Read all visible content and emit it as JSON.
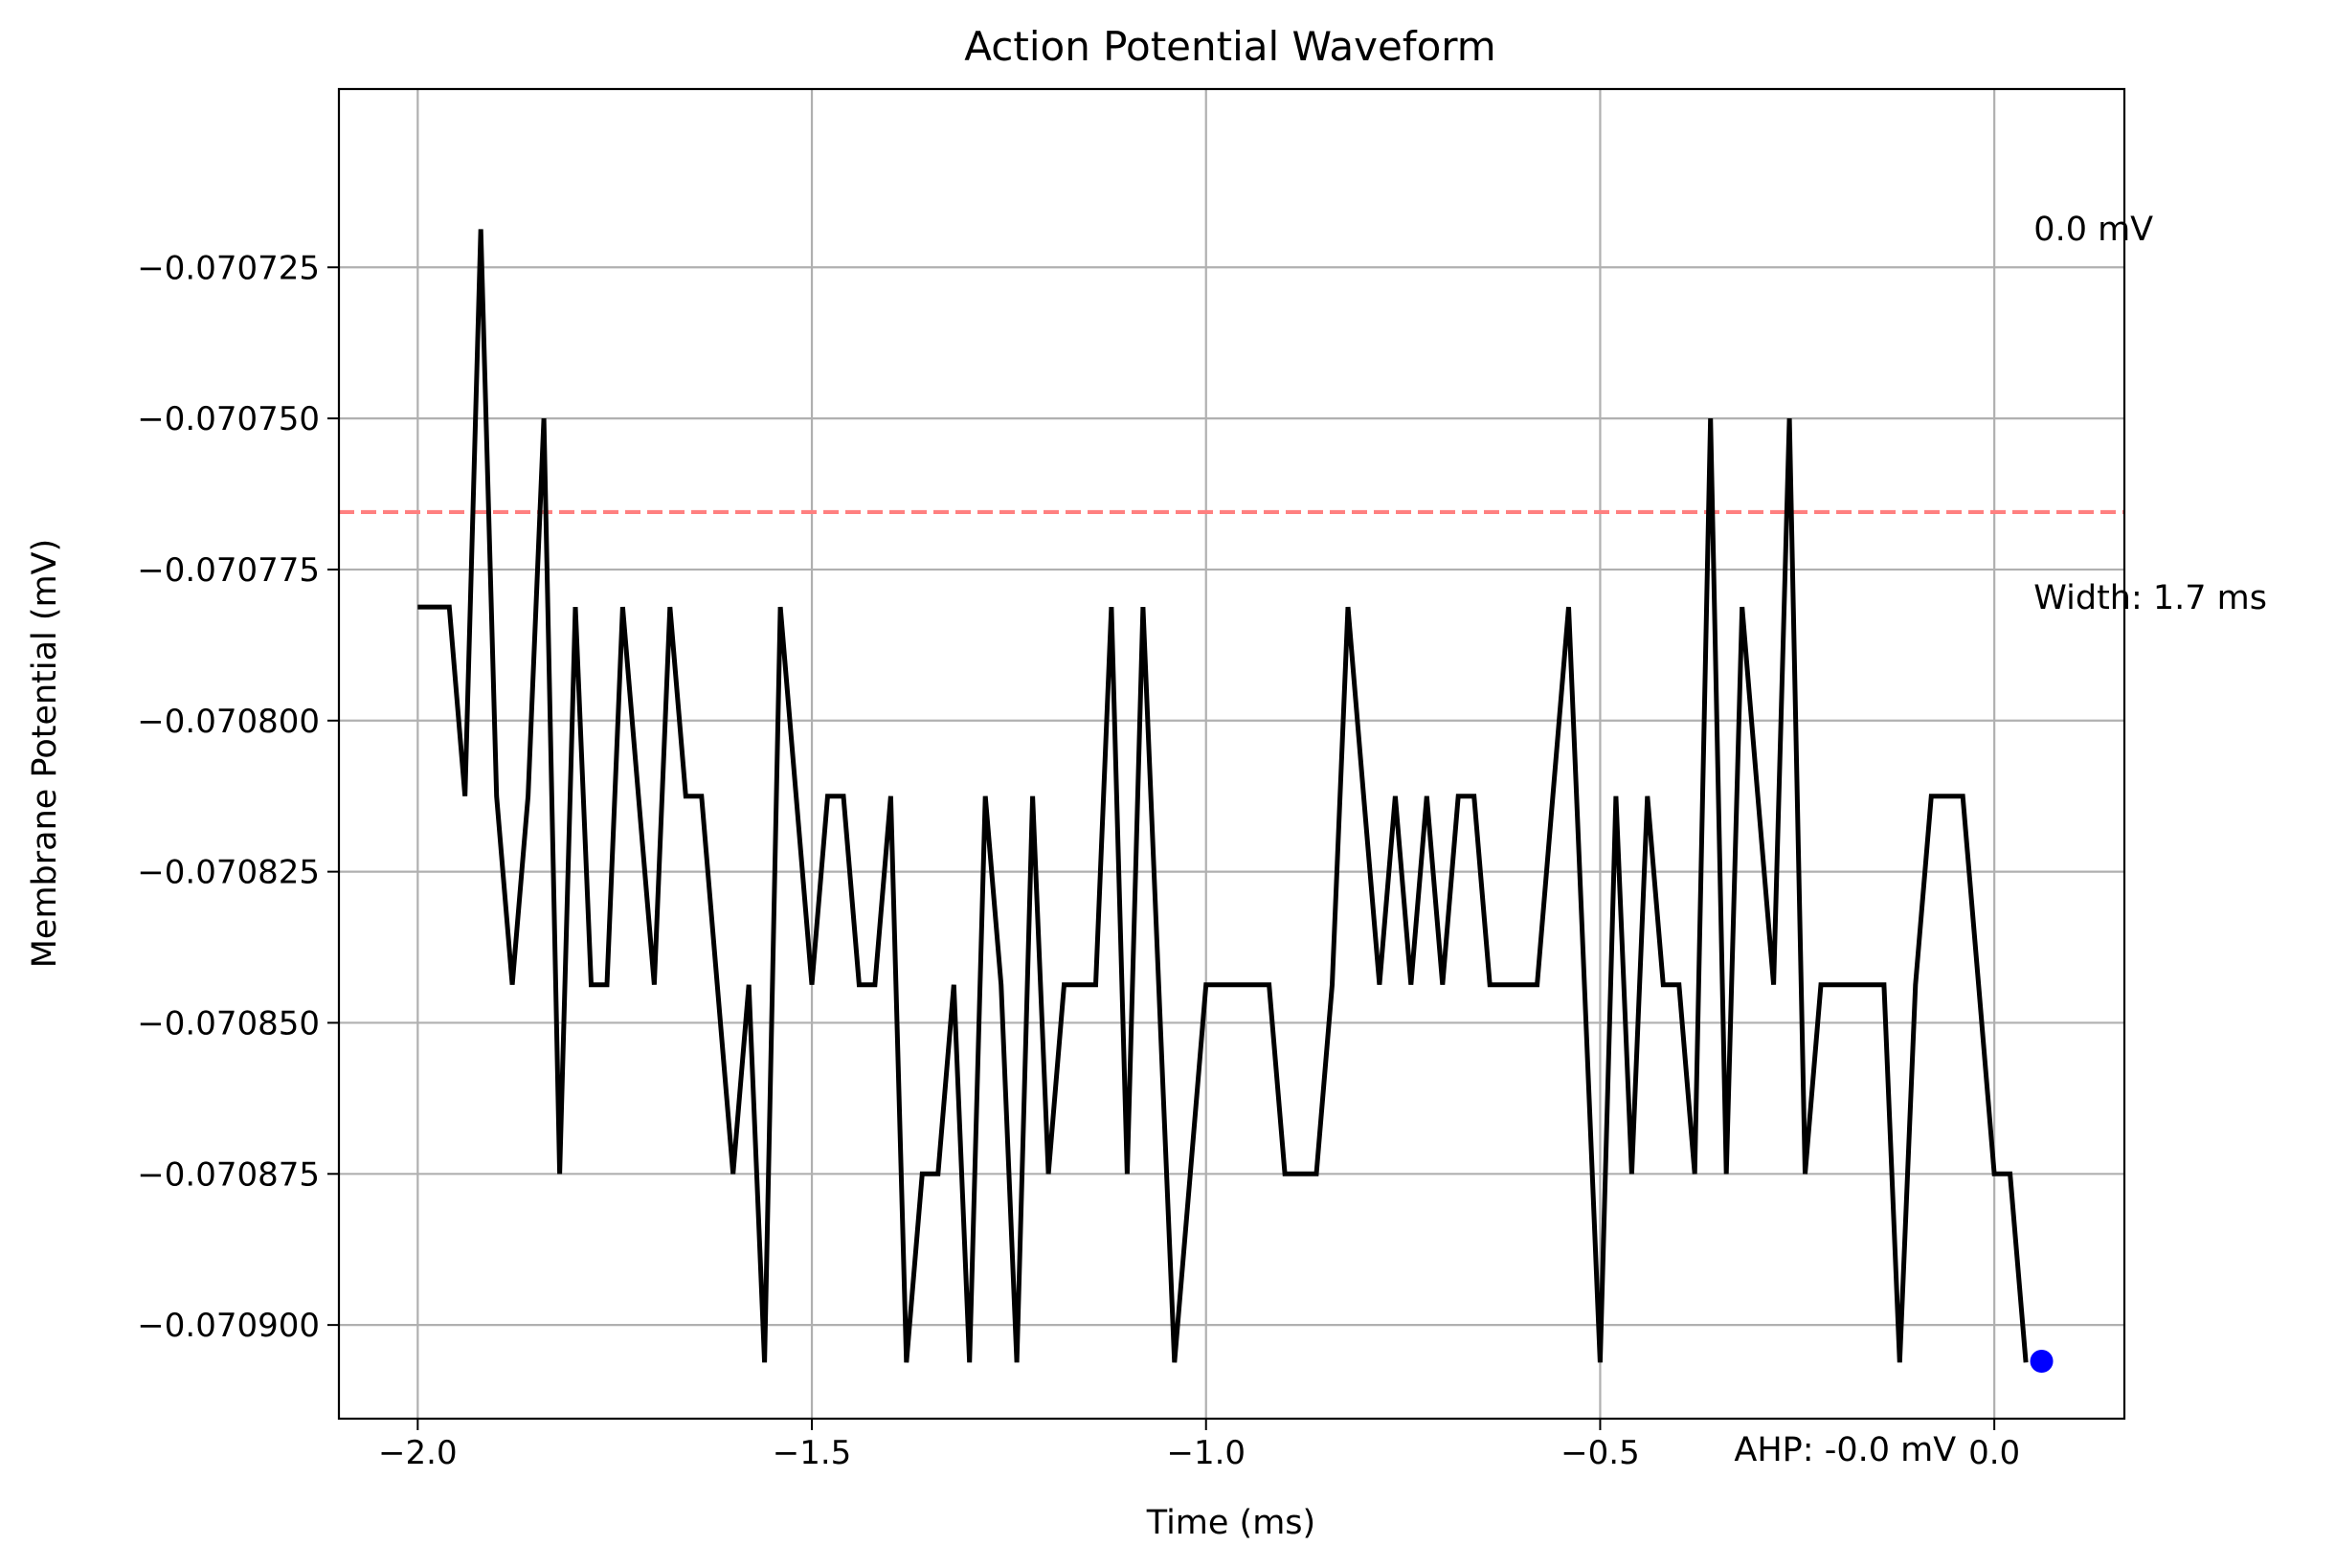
{
  "chart_data": {
    "type": "line",
    "title": "Action Potential Waveform",
    "xlabel": "Time (ms)",
    "ylabel": "Membrane Potential (mV)",
    "xlim": [
      -2.1,
      0.165
    ],
    "ylim": [
      -0.0709155,
      -0.0706955
    ],
    "xticks": [
      -2.0,
      -1.5,
      -1.0,
      -0.5,
      0.0
    ],
    "xtick_labels": [
      "−2.0",
      "−1.5",
      "−1.0",
      "−0.5",
      "0.0"
    ],
    "yticks": [
      -0.070725,
      -0.07075,
      -0.070775,
      -0.0708,
      -0.070825,
      -0.07085,
      -0.070875,
      -0.0709
    ],
    "ytick_labels": [
      "−0.070725",
      "−0.070750",
      "−0.070775",
      "−0.070800",
      "−0.070825",
      "−0.070850",
      "−0.070875",
      "−0.070900"
    ],
    "grid": true,
    "line_color": "#000000",
    "threshold": {
      "value": -0.0707655,
      "color": "#ff8080",
      "style": "dashed"
    },
    "marker": {
      "x": 0.06,
      "y": -0.070906,
      "color": "#0000ff"
    },
    "annotations": {
      "peak": {
        "text": "0.0 mV",
        "x": 0.05,
        "y": -0.0707205
      },
      "width": {
        "text": "Width: 1.7 ms",
        "x": 0.05,
        "y": -0.0707815
      },
      "ahp": {
        "text": "AHP: -0.0 mV",
        "x": -0.33,
        "y": -0.0709225
      }
    },
    "series": [
      {
        "x": [
          -2.0,
          -1.98,
          -1.96,
          -1.94,
          -1.92,
          -1.9,
          -1.88,
          -1.86,
          -1.84,
          -1.82,
          -1.8,
          -1.78,
          -1.76,
          -1.74,
          -1.72,
          -1.7,
          -1.68,
          -1.66,
          -1.64,
          -1.62,
          -1.6,
          -1.58,
          -1.56,
          -1.54,
          -1.52,
          -1.5,
          -1.48,
          -1.46,
          -1.44,
          -1.42,
          -1.4,
          -1.38,
          -1.36,
          -1.34,
          -1.32,
          -1.3,
          -1.28,
          -1.26,
          -1.24,
          -1.22,
          -1.2,
          -1.18,
          -1.16,
          -1.14,
          -1.12,
          -1.1,
          -1.08,
          -1.06,
          -1.04,
          -1.02,
          -1.0,
          -0.98,
          -0.96,
          -0.94,
          -0.92,
          -0.9,
          -0.88,
          -0.86,
          -0.84,
          -0.82,
          -0.8,
          -0.78,
          -0.76,
          -0.74,
          -0.72,
          -0.7,
          -0.68,
          -0.66,
          -0.64,
          -0.62,
          -0.6,
          -0.58,
          -0.56,
          -0.54,
          -0.52,
          -0.5,
          -0.48,
          -0.46,
          -0.44,
          -0.42,
          -0.4,
          -0.38,
          -0.36,
          -0.34,
          -0.32,
          -0.3,
          -0.28,
          -0.26,
          -0.24,
          -0.22,
          -0.2,
          -0.18,
          -0.16,
          -0.14,
          -0.12,
          -0.1,
          -0.08,
          -0.06,
          -0.04,
          -0.02,
          0.0,
          0.02,
          0.04
        ],
        "y": [
          -0.0707812,
          -0.0707812,
          -0.0707812,
          -0.0708125,
          -0.0707187,
          -0.0708125,
          -0.0708437,
          -0.0708125,
          -0.07075,
          -0.070875,
          -0.0707812,
          -0.0708437,
          -0.0708437,
          -0.0707812,
          -0.0708125,
          -0.0708437,
          -0.0707812,
          -0.0708125,
          -0.0708125,
          -0.0708437,
          -0.070875,
          -0.0708437,
          -0.0709062,
          -0.0707812,
          -0.0708125,
          -0.0708437,
          -0.0708125,
          -0.0708125,
          -0.0708437,
          -0.0708437,
          -0.0708125,
          -0.0709062,
          -0.070875,
          -0.070875,
          -0.0708437,
          -0.0709062,
          -0.0708125,
          -0.0708437,
          -0.0709062,
          -0.0708125,
          -0.070875,
          -0.0708437,
          -0.0708437,
          -0.0708437,
          -0.0707812,
          -0.070875,
          -0.0707812,
          -0.0708437,
          -0.0709062,
          -0.070875,
          -0.0708437,
          -0.0708437,
          -0.0708437,
          -0.0708437,
          -0.0708437,
          -0.070875,
          -0.070875,
          -0.070875,
          -0.0708437,
          -0.0707812,
          -0.0708125,
          -0.0708437,
          -0.0708125,
          -0.0708437,
          -0.0708125,
          -0.0708437,
          -0.0708125,
          -0.0708125,
          -0.0708437,
          -0.0708437,
          -0.0708437,
          -0.0708437,
          -0.0708125,
          -0.0707812,
          -0.0708437,
          -0.0709062,
          -0.0708125,
          -0.070875,
          -0.0708125,
          -0.0708437,
          -0.0708437,
          -0.070875,
          -0.07075,
          -0.070875,
          -0.0707812,
          -0.0708125,
          -0.0708437,
          -0.07075,
          -0.070875,
          -0.0708437,
          -0.0708437,
          -0.0708437,
          -0.0708437,
          -0.0708437,
          -0.0709062,
          -0.0708437,
          -0.0708125,
          -0.0708125,
          -0.0708125,
          -0.0708437,
          -0.070875,
          -0.070875,
          -0.0709062
        ]
      }
    ]
  }
}
